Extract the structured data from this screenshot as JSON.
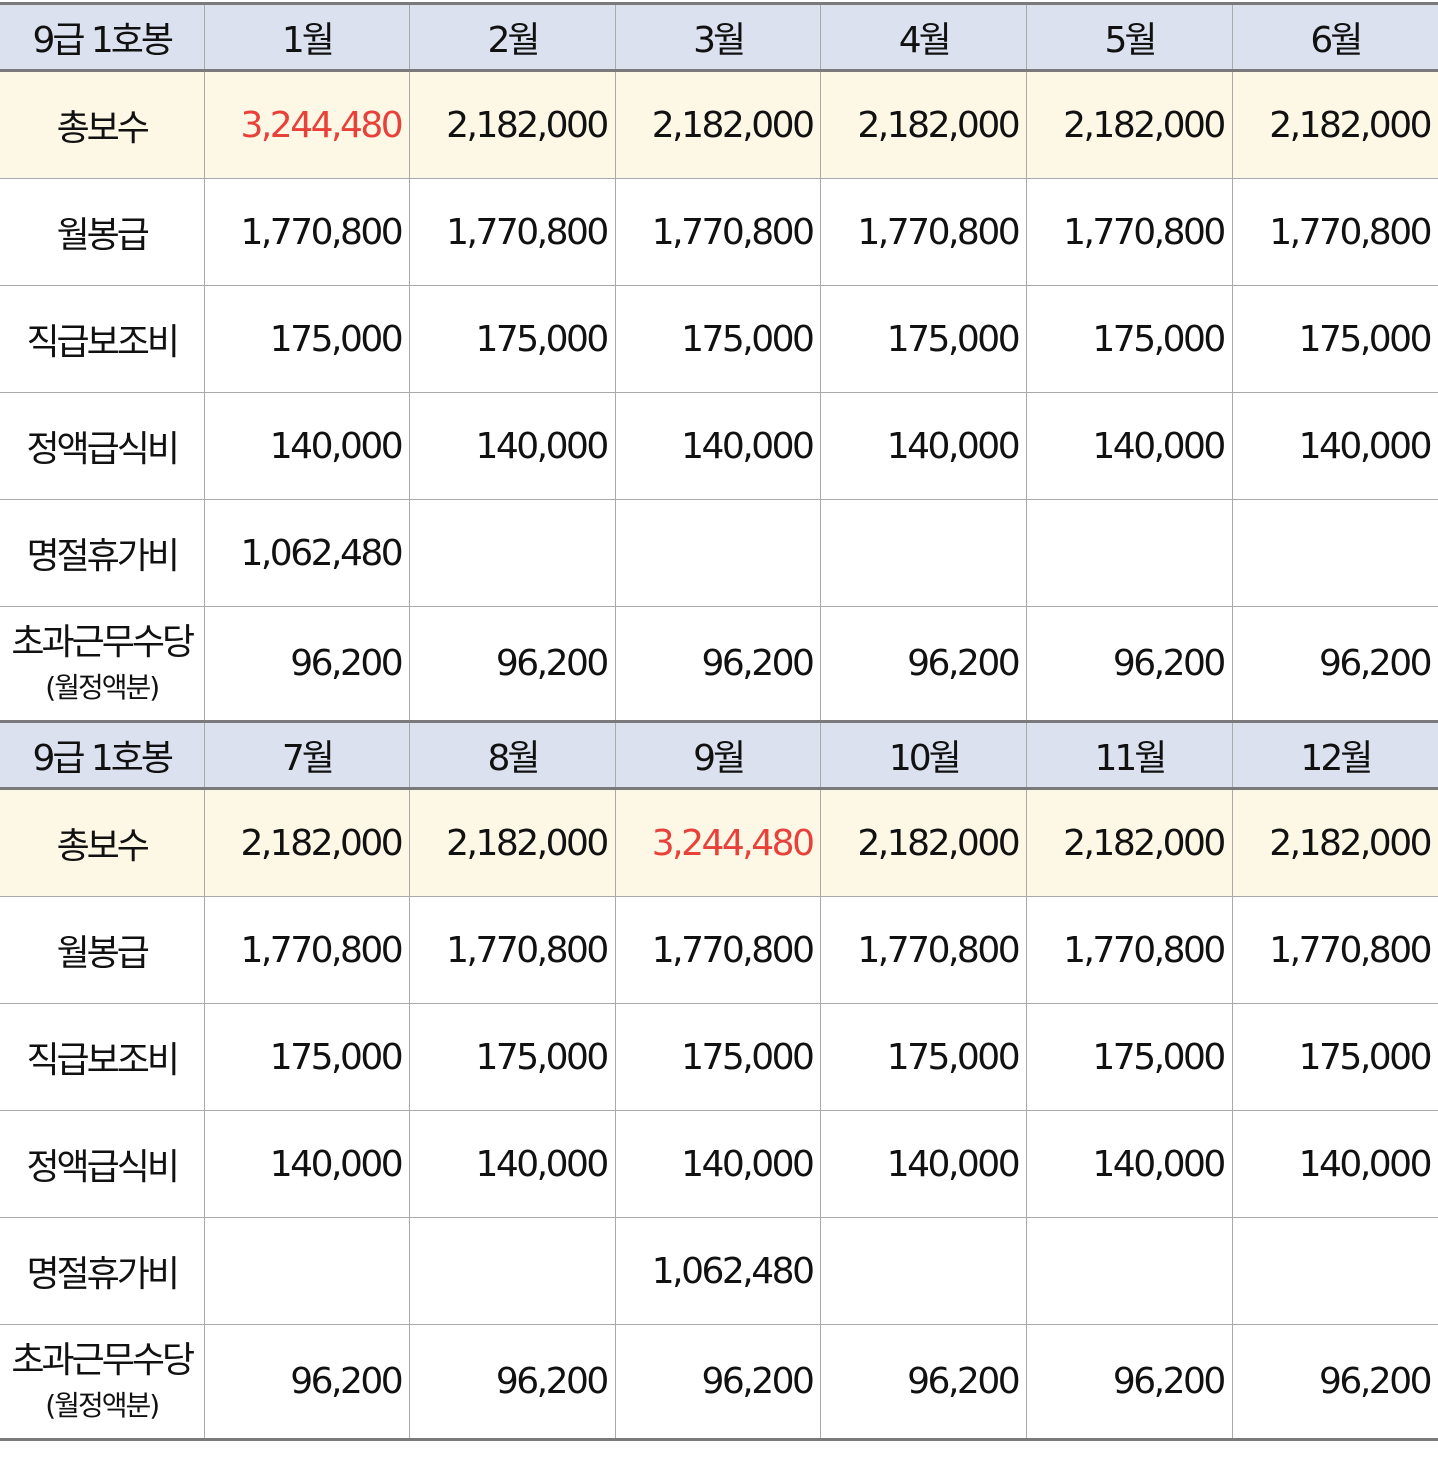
{
  "corner_label": "9급 1호봉",
  "row_labels": {
    "total": "총보수",
    "base": "월봉급",
    "grade_allowance": "직급보조비",
    "meal": "정액급식비",
    "holiday_bonus": "명절휴가비",
    "overtime_main": "초과근무수당",
    "overtime_sub": "(월정액분)"
  },
  "colors": {
    "header_bg": "#dce1f0",
    "total_row_bg": "#fdf7e5",
    "highlight_text": "#e8413a",
    "grid": "#a9a9a9",
    "outer_border": "#7a7a7a"
  },
  "blocks": [
    {
      "months": [
        "1월",
        "2월",
        "3월",
        "4월",
        "5월",
        "6월"
      ],
      "total": [
        "3,244,480",
        "2,182,000",
        "2,182,000",
        "2,182,000",
        "2,182,000",
        "2,182,000"
      ],
      "total_highlight": [
        true,
        false,
        false,
        false,
        false,
        false
      ],
      "base": [
        "1,770,800",
        "1,770,800",
        "1,770,800",
        "1,770,800",
        "1,770,800",
        "1,770,800"
      ],
      "grade_allowance": [
        "175,000",
        "175,000",
        "175,000",
        "175,000",
        "175,000",
        "175,000"
      ],
      "meal": [
        "140,000",
        "140,000",
        "140,000",
        "140,000",
        "140,000",
        "140,000"
      ],
      "holiday_bonus": [
        "1,062,480",
        "",
        "",
        "",
        "",
        ""
      ],
      "overtime": [
        "96,200",
        "96,200",
        "96,200",
        "96,200",
        "96,200",
        "96,200"
      ]
    },
    {
      "months": [
        "7월",
        "8월",
        "9월",
        "10월",
        "11월",
        "12월"
      ],
      "total": [
        "2,182,000",
        "2,182,000",
        "3,244,480",
        "2,182,000",
        "2,182,000",
        "2,182,000"
      ],
      "total_highlight": [
        false,
        false,
        true,
        false,
        false,
        false
      ],
      "base": [
        "1,770,800",
        "1,770,800",
        "1,770,800",
        "1,770,800",
        "1,770,800",
        "1,770,800"
      ],
      "grade_allowance": [
        "175,000",
        "175,000",
        "175,000",
        "175,000",
        "175,000",
        "175,000"
      ],
      "meal": [
        "140,000",
        "140,000",
        "140,000",
        "140,000",
        "140,000",
        "140,000"
      ],
      "holiday_bonus": [
        "",
        "",
        "1,062,480",
        "",
        "",
        ""
      ],
      "overtime": [
        "96,200",
        "96,200",
        "96,200",
        "96,200",
        "96,200",
        "96,200"
      ]
    }
  ]
}
